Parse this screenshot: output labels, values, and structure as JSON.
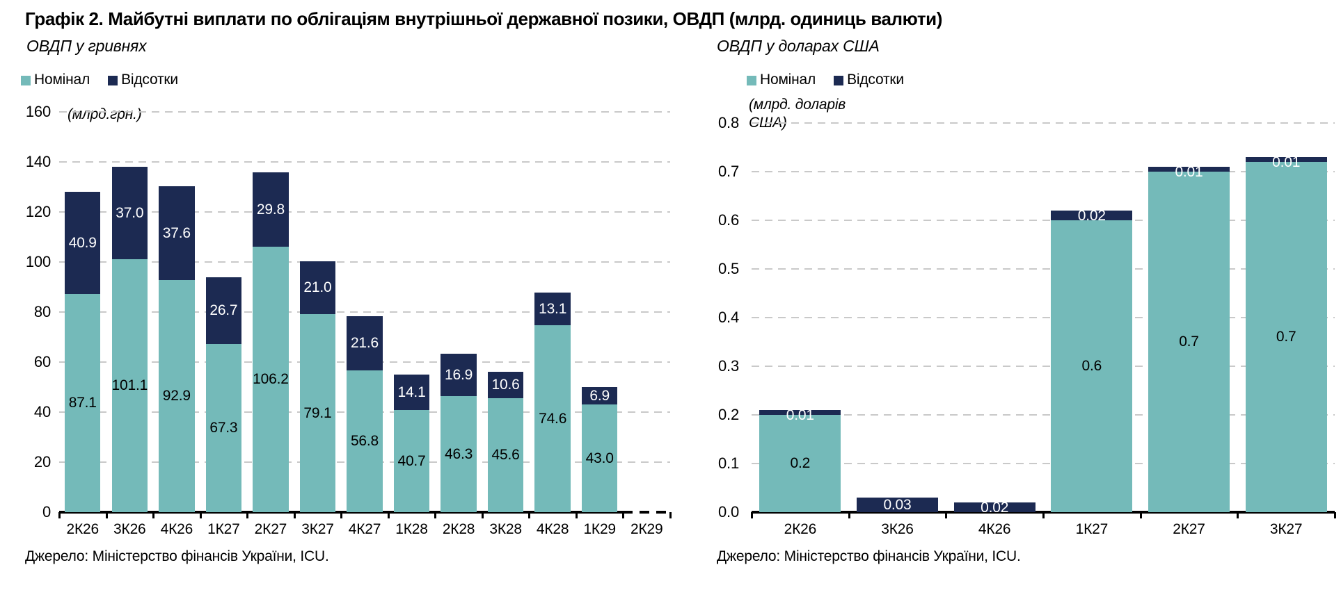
{
  "title": "Графік 2. Майбутні виплати по облігаціям внутрішньої державної позики, ОВДП (млрд. одиниць валюти)",
  "legend": {
    "nominal": "Номінал",
    "interest": "Відсотки"
  },
  "colors": {
    "nominal": "#74bab9",
    "interest": "#1c2a52",
    "gridline": "#c9c9c9",
    "axis": "#000000",
    "nominal_label": "#000000",
    "interest_label": "#ffffff"
  },
  "chart_data": [
    {
      "type": "bar",
      "stacked": true,
      "subtitle": "ОВДП у гривнях",
      "unit_label": "(млрд.грн.)",
      "source": "Джерело: Міністерство фінансів України, ICU.",
      "legend_entries": [
        "Номінал",
        "Відсотки"
      ],
      "legend_position": "top-left",
      "grid": "dashed-horizontal",
      "ylim": [
        0,
        160
      ],
      "ytick_step": 20,
      "ytick_decimals": 0,
      "categories": [
        "2К26",
        "3К26",
        "4К26",
        "1К27",
        "2К27",
        "3К27",
        "4К27",
        "1К28",
        "2К28",
        "3К28",
        "4К28",
        "1К29",
        "2К29"
      ],
      "series": [
        {
          "name": "Номінал",
          "values": [
            87.1,
            101.1,
            92.9,
            67.3,
            106.2,
            79.1,
            56.8,
            40.7,
            46.3,
            45.6,
            74.6,
            43.0,
            0
          ],
          "labels": [
            "87.1",
            "101.1",
            "92.9",
            "67.3",
            "106.2",
            "79.1",
            "56.8",
            "40.7",
            "46.3",
            "45.6",
            "74.6",
            "43.0",
            ""
          ]
        },
        {
          "name": "Відсотки",
          "values": [
            40.9,
            37.0,
            37.6,
            26.7,
            29.8,
            21.0,
            21.6,
            14.1,
            16.9,
            10.6,
            13.1,
            6.9,
            0
          ],
          "labels": [
            "40.9",
            "37.0",
            "37.6",
            "26.7",
            "29.8",
            "21.0",
            "21.6",
            "14.1",
            "16.9",
            "10.6",
            "13.1",
            "6.9",
            ""
          ]
        }
      ]
    },
    {
      "type": "bar",
      "stacked": true,
      "subtitle": "ОВДП у доларах США",
      "unit_label": "(млрд. доларів США)",
      "source": "Джерело: Міністерство фінансів України, ICU.",
      "legend_entries": [
        "Номінал",
        "Відсотки"
      ],
      "legend_position": "top-left",
      "grid": "dashed-horizontal",
      "ylim": [
        0,
        0.8
      ],
      "ytick_step": 0.1,
      "ytick_decimals": 1,
      "categories": [
        "2К26",
        "3К26",
        "4К26",
        "1К27",
        "2К27",
        "3К27"
      ],
      "series": [
        {
          "name": "Номінал",
          "values": [
            0.2,
            0,
            0,
            0.6,
            0.7,
            0.72
          ],
          "labels": [
            "0.2",
            "",
            "",
            "0.6",
            "0.7",
            "0.7"
          ]
        },
        {
          "name": "Відсотки",
          "values": [
            0.01,
            0.03,
            0.02,
            0.02,
            0.01,
            0.01
          ],
          "labels": [
            "0.01",
            "0.03",
            "0.02",
            "0.02",
            "0.01",
            "0.01"
          ]
        }
      ]
    }
  ]
}
